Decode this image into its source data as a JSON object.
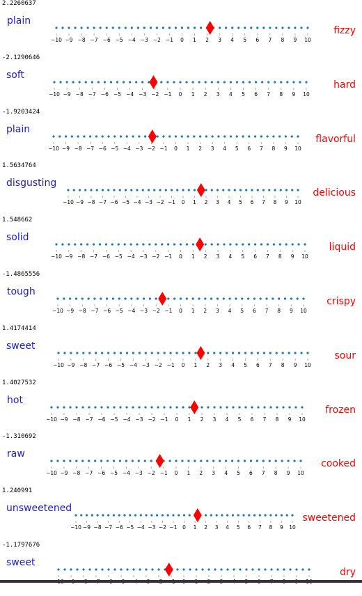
{
  "scale": {
    "min": -10,
    "max": 10,
    "tick_labels": [
      "−10",
      "−9",
      "−8",
      "−7",
      "−6",
      "−5",
      "−4",
      "−3",
      "−2",
      "−1",
      "0",
      "1",
      "2",
      "3",
      "4",
      "5",
      "6",
      "7",
      "8",
      "9",
      "10"
    ]
  },
  "colors": {
    "left_label": "#1b1bd6",
    "right_label": "#ff0000",
    "dot": "#1f77b4",
    "marker": "#ff0000"
  },
  "rows": [
    {
      "score_text": "2.2260637",
      "value": 2.2260637,
      "left": "plain",
      "right": "fizzy"
    },
    {
      "score_text": "-2.1290646",
      "value": -2.1290646,
      "left": "soft",
      "right": "hard"
    },
    {
      "score_text": "-1.9203424",
      "value": -1.9203424,
      "left": "plain",
      "right": "flavorful"
    },
    {
      "score_text": "1.5634764",
      "value": 1.5634764,
      "left": "disgusting",
      "right": "delicious"
    },
    {
      "score_text": "1.548662",
      "value": 1.548662,
      "left": "solid",
      "right": "liquid"
    },
    {
      "score_text": "-1.4865556",
      "value": -1.4865556,
      "left": "tough",
      "right": "crispy"
    },
    {
      "score_text": "1.4174414",
      "value": 1.4174414,
      "left": "sweet",
      "right": "sour"
    },
    {
      "score_text": "1.4027532",
      "value": 1.4027532,
      "left": "hot",
      "right": "frozen"
    },
    {
      "score_text": "-1.310692",
      "value": -1.310692,
      "left": "raw",
      "right": "cooked"
    },
    {
      "score_text": "1.240991",
      "value": 1.240991,
      "left": "unsweetened",
      "right": "sweetened"
    },
    {
      "score_text": "-1.1797676",
      "value": -1.1797676,
      "left": "sweet",
      "right": "dry"
    }
  ]
}
